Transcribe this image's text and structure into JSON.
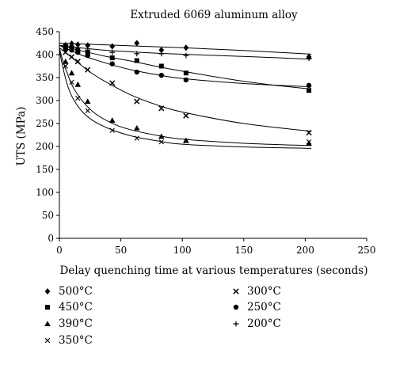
{
  "chart_data": {
    "type": "scatter",
    "title": "Extruded 6069 aluminum alloy",
    "xlabel": "Delay quenching time at various temperatures (seconds)",
    "ylabel": "UTS (MPa)",
    "xlim": [
      0,
      250
    ],
    "ylim": [
      0,
      450
    ],
    "x_ticks": [
      "0",
      "50",
      "100",
      "150",
      "200",
      "250"
    ],
    "y_ticks": [
      "0",
      "50",
      "100",
      "150",
      "200",
      "250",
      "300",
      "350",
      "400",
      "450"
    ],
    "grid": false,
    "legend_position": "bottom",
    "series": [
      {
        "name": "500°C",
        "marker": "diamond",
        "points": [
          [
            5,
            421
          ],
          [
            10,
            424
          ],
          [
            15,
            422
          ],
          [
            23,
            420
          ],
          [
            43,
            418
          ],
          [
            63,
            425
          ],
          [
            83,
            410
          ],
          [
            103,
            415
          ],
          [
            203,
            395
          ]
        ],
        "fit": [
          [
            0,
            425
          ],
          [
            30,
            422
          ],
          [
            60,
            419
          ],
          [
            100,
            415
          ],
          [
            150,
            409
          ],
          [
            205,
            401
          ]
        ]
      },
      {
        "name": "200°C",
        "marker": "plus",
        "points": [
          [
            5,
            420
          ],
          [
            10,
            418
          ],
          [
            15,
            415
          ],
          [
            23,
            410
          ],
          [
            43,
            405
          ],
          [
            63,
            402
          ],
          [
            83,
            402
          ],
          [
            103,
            398
          ],
          [
            203,
            392
          ]
        ],
        "fit": [
          [
            0,
            420
          ],
          [
            20,
            414
          ],
          [
            40,
            409
          ],
          [
            80,
            403
          ],
          [
            120,
            399
          ],
          [
            160,
            395
          ],
          [
            205,
            390
          ]
        ]
      },
      {
        "name": "450°C",
        "marker": "square",
        "points": [
          [
            5,
            418
          ],
          [
            10,
            415
          ],
          [
            15,
            410
          ],
          [
            23,
            405
          ],
          [
            43,
            393
          ],
          [
            63,
            387
          ],
          [
            83,
            375
          ],
          [
            103,
            360
          ],
          [
            203,
            322
          ]
        ],
        "fit": [
          [
            0,
            420
          ],
          [
            20,
            407
          ],
          [
            40,
            395
          ],
          [
            60,
            385
          ],
          [
            80,
            374
          ],
          [
            100,
            364
          ],
          [
            140,
            346
          ],
          [
            170,
            335
          ],
          [
            205,
            325
          ]
        ]
      },
      {
        "name": "250°C",
        "marker": "circle",
        "points": [
          [
            5,
            412
          ],
          [
            10,
            410
          ],
          [
            15,
            405
          ],
          [
            23,
            398
          ],
          [
            43,
            380
          ],
          [
            63,
            362
          ],
          [
            83,
            355
          ],
          [
            103,
            345
          ],
          [
            203,
            333
          ]
        ],
        "fit": [
          [
            0,
            420
          ],
          [
            10,
            408
          ],
          [
            20,
            397
          ],
          [
            30,
            388
          ],
          [
            45,
            376
          ],
          [
            60,
            366
          ],
          [
            80,
            356
          ],
          [
            100,
            348
          ],
          [
            150,
            337
          ],
          [
            205,
            330
          ]
        ]
      },
      {
        "name": "300°C",
        "marker": "x",
        "points": [
          [
            5,
            405
          ],
          [
            10,
            395
          ],
          [
            15,
            385
          ],
          [
            23,
            367
          ],
          [
            43,
            338
          ],
          [
            63,
            298
          ],
          [
            83,
            283
          ],
          [
            103,
            267
          ],
          [
            203,
            230
          ]
        ],
        "fit": [
          [
            0,
            415
          ],
          [
            10,
            394
          ],
          [
            20,
            372
          ],
          [
            30,
            353
          ],
          [
            45,
            330
          ],
          [
            60,
            310
          ],
          [
            80,
            290
          ],
          [
            100,
            275
          ],
          [
            150,
            250
          ],
          [
            205,
            233
          ]
        ]
      },
      {
        "name": "390°C",
        "marker": "triangle",
        "points": [
          [
            5,
            385
          ],
          [
            10,
            360
          ],
          [
            15,
            335
          ],
          [
            23,
            298
          ],
          [
            43,
            257
          ],
          [
            63,
            240
          ],
          [
            83,
            222
          ],
          [
            103,
            213
          ],
          [
            203,
            207
          ]
        ],
        "fit": [
          [
            0,
            415
          ],
          [
            3,
            385
          ],
          [
            7,
            355
          ],
          [
            12,
            325
          ],
          [
            20,
            295
          ],
          [
            30,
            270
          ],
          [
            45,
            248
          ],
          [
            60,
            235
          ],
          [
            80,
            224
          ],
          [
            100,
            216
          ],
          [
            150,
            207
          ],
          [
            205,
            202
          ]
        ]
      },
      {
        "name": "350°C",
        "marker": "cross",
        "points": [
          [
            5,
            375
          ],
          [
            10,
            340
          ],
          [
            15,
            305
          ],
          [
            23,
            278
          ],
          [
            43,
            235
          ],
          [
            63,
            218
          ],
          [
            83,
            210
          ],
          [
            103,
            212
          ],
          [
            203,
            210
          ]
        ],
        "fit": [
          [
            0,
            410
          ],
          [
            3,
            370
          ],
          [
            7,
            330
          ],
          [
            12,
            300
          ],
          [
            20,
            272
          ],
          [
            30,
            252
          ],
          [
            45,
            234
          ],
          [
            60,
            222
          ],
          [
            80,
            212
          ],
          [
            100,
            205
          ],
          [
            150,
            199
          ],
          [
            205,
            196
          ]
        ]
      }
    ],
    "legend_order": [
      0,
      2,
      5,
      6,
      4,
      3,
      1
    ]
  }
}
